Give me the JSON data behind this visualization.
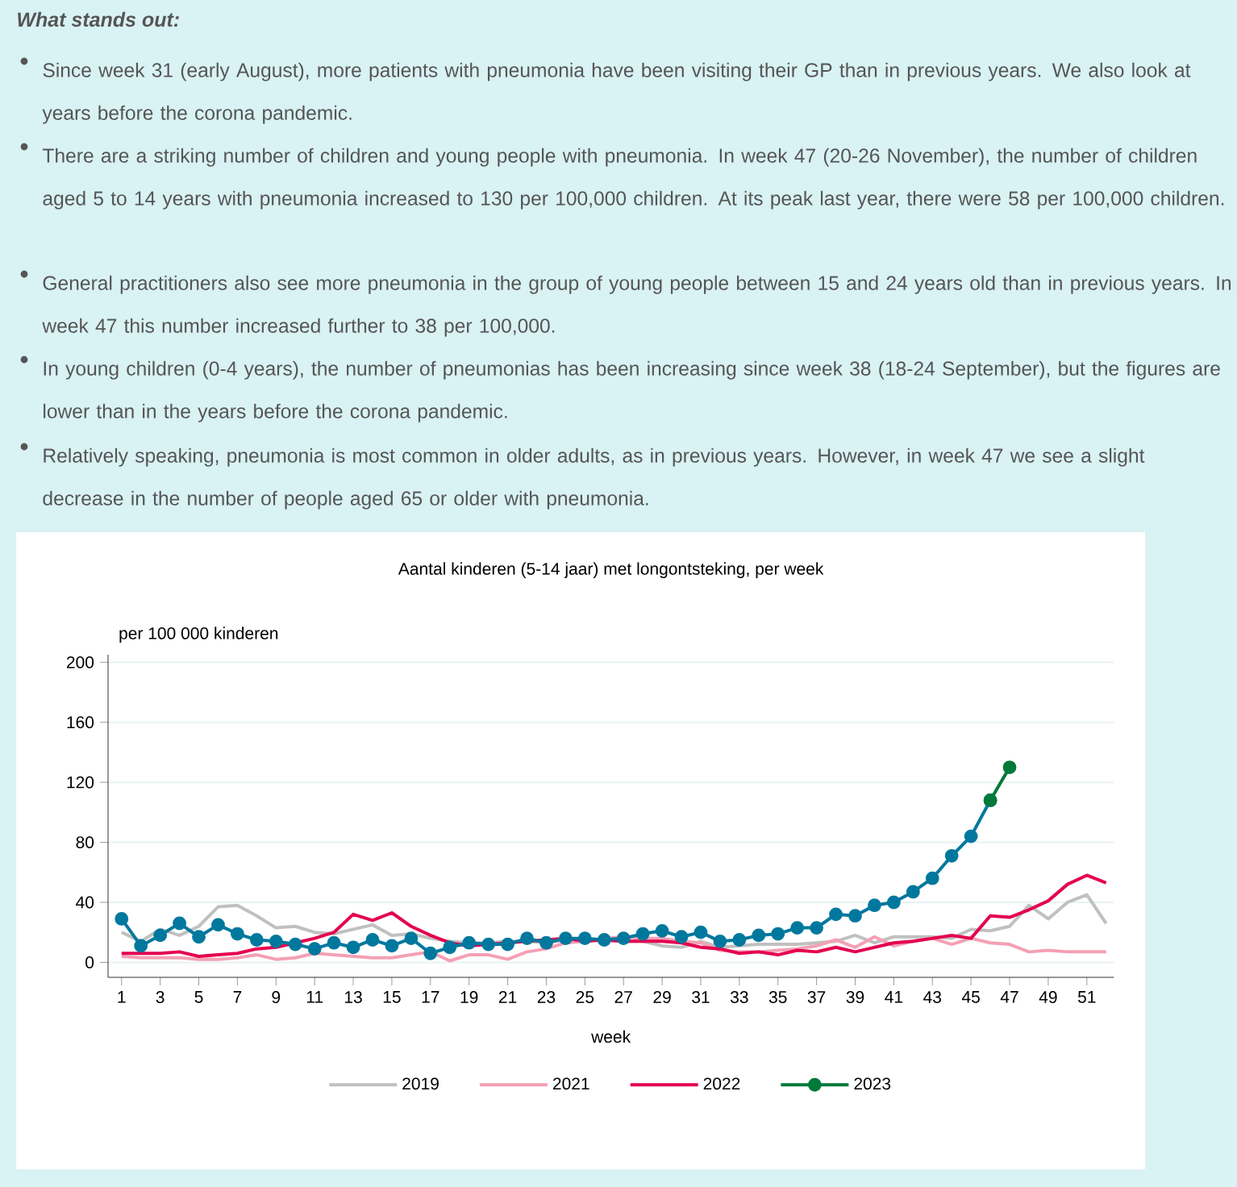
{
  "chart_data": {
    "type": "line",
    "title": "Aantal kinderen (5-14 jaar) met longontsteking, per week",
    "xlabel": "week",
    "ylabel": "per 100 000 kinderen",
    "annotations": [
      "What stands out:",
      "Since week 31 (early August), more patients with pneumonia have been visiting their GP than in previous years. We also look at years before the corona pandemic.",
      "There are a striking number of children and young people with pneumonia. In week 47 (20-26 November), the number of children aged 5 to 14 years with pneumonia increased to 130 per 100,000 children. At its peak last year, there were 58 per 100,000 children.",
      "General practitioners also see more pneumonia in the group of young people between 15 and 24 years old than in previous years. In week 47 this number increased further to 38 per 100,000.",
      "In young children (0-4 years), the number of pneumonias has been increasing since week 38 (18-24 September), but the figures are lower than in the years before the corona pandemic.",
      "Relatively speaking, pneumonia is most common in older adults, as in previous years. However, in week 47 we see a slight decrease in the number of people aged 65 or older with pneumonia."
    ],
    "x": [
      1,
      2,
      3,
      4,
      5,
      6,
      7,
      8,
      9,
      10,
      11,
      12,
      13,
      14,
      15,
      16,
      17,
      18,
      19,
      20,
      21,
      22,
      23,
      24,
      25,
      26,
      27,
      28,
      29,
      30,
      31,
      32,
      33,
      34,
      35,
      36,
      37,
      38,
      39,
      40,
      41,
      42,
      43,
      44,
      45,
      46,
      47,
      48,
      49,
      50,
      51,
      52
    ],
    "xlim": [
      0.3,
      52.4
    ],
    "xticks": [
      1,
      3,
      5,
      7,
      9,
      11,
      13,
      15,
      17,
      19,
      21,
      23,
      25,
      27,
      29,
      31,
      33,
      35,
      37,
      39,
      41,
      43,
      45,
      47,
      49,
      51
    ],
    "ylim": [
      -10,
      205
    ],
    "yticks": [
      0,
      40,
      80,
      120,
      160,
      200
    ],
    "grid": "y",
    "legend": "bottom",
    "series": [
      {
        "name": "2019",
        "color": "#c0c0c0",
        "marker": "none",
        "values": [
          20,
          14,
          22,
          18,
          24,
          37,
          38,
          31,
          23,
          24,
          20,
          19,
          22,
          25,
          18,
          19,
          16,
          14,
          13,
          13,
          14,
          14,
          13,
          15,
          15,
          15,
          14,
          14,
          11,
          10,
          14,
          10,
          11,
          12,
          12,
          12,
          13,
          14,
          18,
          13,
          17,
          17,
          17,
          16,
          22,
          21,
          24,
          38,
          29,
          40,
          45,
          26
        ]
      },
      {
        "name": "2021",
        "color": "#f4a0b4",
        "marker": "none",
        "values": [
          4,
          3,
          3,
          3,
          2,
          2,
          3,
          5,
          2,
          3,
          6,
          5,
          4,
          3,
          3,
          5,
          7,
          1,
          5,
          5,
          2,
          7,
          9,
          13,
          14,
          16,
          17,
          16,
          16,
          14,
          13,
          8,
          7,
          7,
          8,
          9,
          11,
          15,
          10,
          17,
          11,
          14,
          16,
          12,
          16,
          13,
          12,
          7,
          8,
          7,
          7,
          7
        ]
      },
      {
        "name": "2022",
        "color": "#e4004f",
        "marker": "none",
        "values": [
          6,
          6,
          6,
          7,
          4,
          5,
          6,
          9,
          10,
          13,
          16,
          20,
          32,
          28,
          33,
          24,
          18,
          13,
          11,
          12,
          13,
          14,
          15,
          16,
          14,
          15,
          14,
          14,
          14,
          13,
          10,
          9,
          6,
          7,
          5,
          8,
          7,
          10,
          7,
          10,
          13,
          14,
          16,
          18,
          16,
          31,
          30,
          35,
          41,
          52,
          58,
          53
        ]
      },
      {
        "color": "#00789e",
        "marker": "circle",
        "values": [
          29,
          11,
          18,
          26,
          17,
          25,
          19,
          15,
          14,
          12,
          9,
          13,
          10,
          15,
          11,
          16,
          6,
          10,
          13,
          12,
          12,
          16,
          13,
          16,
          16,
          15,
          16,
          19,
          21,
          17,
          20,
          14,
          15,
          18,
          19,
          23,
          23,
          32,
          31,
          38,
          40,
          47,
          56,
          71,
          84,
          108,
          null,
          null,
          null,
          null,
          null,
          null
        ]
      },
      {
        "name": "2023",
        "color": "#007a3a",
        "marker": "circle",
        "values": [
          null,
          null,
          null,
          null,
          null,
          null,
          null,
          null,
          null,
          null,
          null,
          null,
          null,
          null,
          null,
          null,
          null,
          null,
          null,
          null,
          null,
          null,
          null,
          null,
          null,
          null,
          null,
          null,
          null,
          null,
          null,
          null,
          null,
          null,
          null,
          null,
          null,
          null,
          null,
          null,
          null,
          null,
          null,
          null,
          null,
          108,
          130,
          null,
          null,
          null,
          null,
          null
        ]
      }
    ]
  }
}
